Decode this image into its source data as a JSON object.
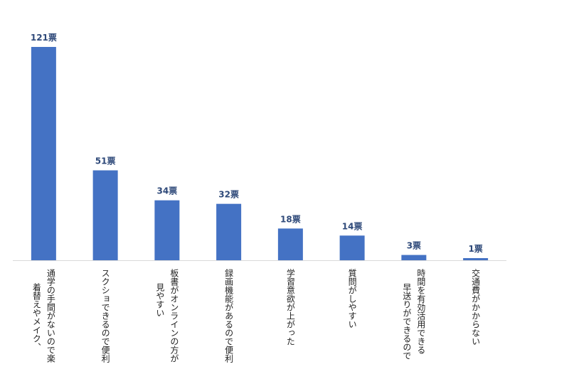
{
  "chart_data": {
    "type": "bar",
    "categories": [
      [
        "通学の手間がないので楽",
        "着替えやメイク、"
      ],
      [
        "スクショできるので便利"
      ],
      [
        "板書がオンラインの方が",
        "見やすい"
      ],
      [
        "録画機能があるので便利"
      ],
      [
        "学習意欲が上がった"
      ],
      [
        "質問がしやすい"
      ],
      [
        "時間を有効活用できる",
        "早送りができるので"
      ],
      [
        "交通費がかからない"
      ]
    ],
    "values": [
      121,
      51,
      34,
      32,
      18,
      14,
      3,
      1
    ],
    "value_labels": [
      "121票",
      "51票",
      "34票",
      "32票",
      "18票",
      "14票",
      "3票",
      "1票"
    ],
    "ylim": [
      0,
      125
    ],
    "grid": false,
    "orientation": "vertical",
    "category_text_direction": "vertical",
    "bar_color": "#4472c4",
    "label_color": "#2f4a7a"
  }
}
